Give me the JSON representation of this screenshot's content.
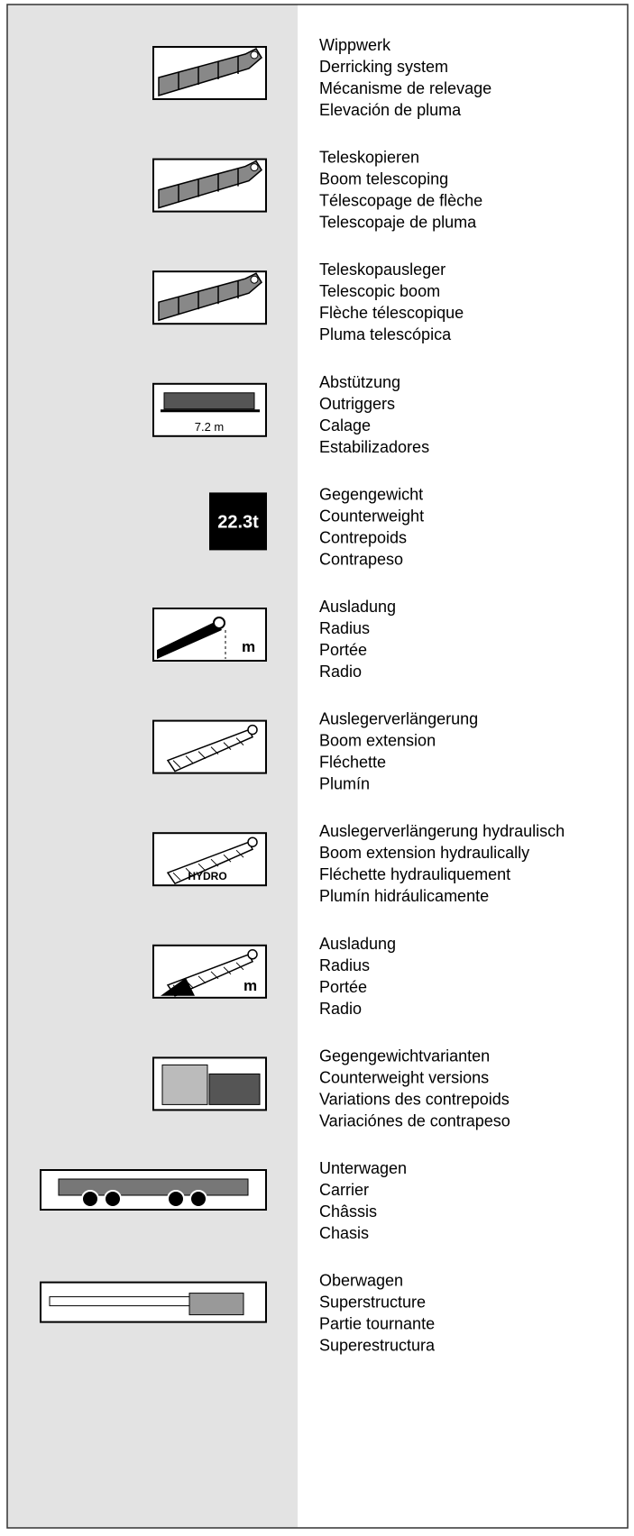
{
  "entries": [
    {
      "lines": [
        "Wippwerk",
        "Derricking system",
        "Mécanisme de relevage",
        "Elevación de pluma"
      ]
    },
    {
      "lines": [
        "Teleskopieren",
        "Boom telescoping",
        "Télescopage de flèche",
        "Telescopaje de pluma"
      ]
    },
    {
      "lines": [
        "Teleskopausleger",
        "Telescopic boom",
        "Flèche télescopique",
        "Pluma telescópica"
      ]
    },
    {
      "icon_label": "7.2 m",
      "lines": [
        "Abstützung",
        "Outriggers",
        "Calage",
        "Estabilizadores"
      ]
    },
    {
      "icon_label": "22.3t",
      "lines": [
        "Gegengewicht",
        "Counterweight",
        "Contrepoids",
        "Contrapeso"
      ]
    },
    {
      "icon_label": "m",
      "lines": [
        "Ausladung",
        "Radius",
        "Portée",
        "Radio"
      ]
    },
    {
      "lines": [
        "Auslegerverlängerung",
        "Boom extension",
        "Fléchette",
        "Plumín"
      ]
    },
    {
      "icon_label": "HYDRO",
      "lines": [
        "Auslegerverlängerung hydraulisch",
        "Boom extension hydraulically",
        "Fléchette hydrauliquement",
        "Plumín hidráulicamente"
      ]
    },
    {
      "icon_label": "m",
      "lines": [
        "Ausladung",
        "Radius",
        "Portée",
        "Radio"
      ]
    },
    {
      "lines": [
        "Gegengewichtvarianten",
        "Counterweight versions",
        "Variations des contrepoids",
        "Variaciónes de contrapeso"
      ]
    },
    {
      "lines": [
        "Unterwagen",
        "Carrier",
        "Châssis",
        "Chasis"
      ]
    },
    {
      "lines": [
        "Oberwagen",
        "Superstructure",
        "Partie tournante",
        "Superestructura"
      ]
    }
  ]
}
